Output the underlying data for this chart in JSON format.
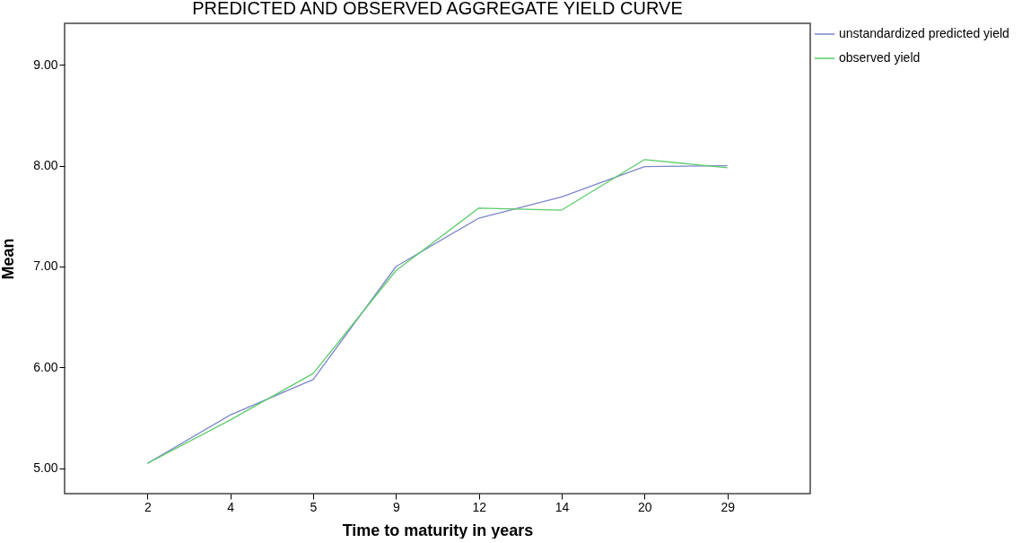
{
  "chart_data": {
    "type": "line",
    "title": "PREDICTED AND OBSERVED AGGREGATE YIELD CURVE",
    "xlabel": "Time to maturity in years",
    "ylabel": "Mean",
    "categories": [
      "2",
      "4",
      "5",
      "9",
      "12",
      "14",
      "20",
      "29"
    ],
    "series": [
      {
        "name": "unstandardized predicted yield",
        "color": "#7b86c8",
        "values": [
          5.05,
          5.53,
          5.88,
          7.0,
          7.48,
          7.69,
          7.99,
          8.0
        ]
      },
      {
        "name": "observed yield",
        "color": "#5ccc6c",
        "values": [
          5.05,
          5.48,
          5.94,
          6.96,
          7.58,
          7.56,
          8.06,
          7.98
        ]
      }
    ],
    "ylim": [
      4.75,
      9.41
    ],
    "yticks": [
      {
        "value": 5,
        "label": "5.00"
      },
      {
        "value": 6,
        "label": "6.00"
      },
      {
        "value": 7,
        "label": "7.00"
      },
      {
        "value": 8,
        "label": "8.00"
      },
      {
        "value": 9,
        "label": "9.00"
      }
    ],
    "legend": "top right",
    "grid": false,
    "marker": "none",
    "line_style": "solid"
  }
}
